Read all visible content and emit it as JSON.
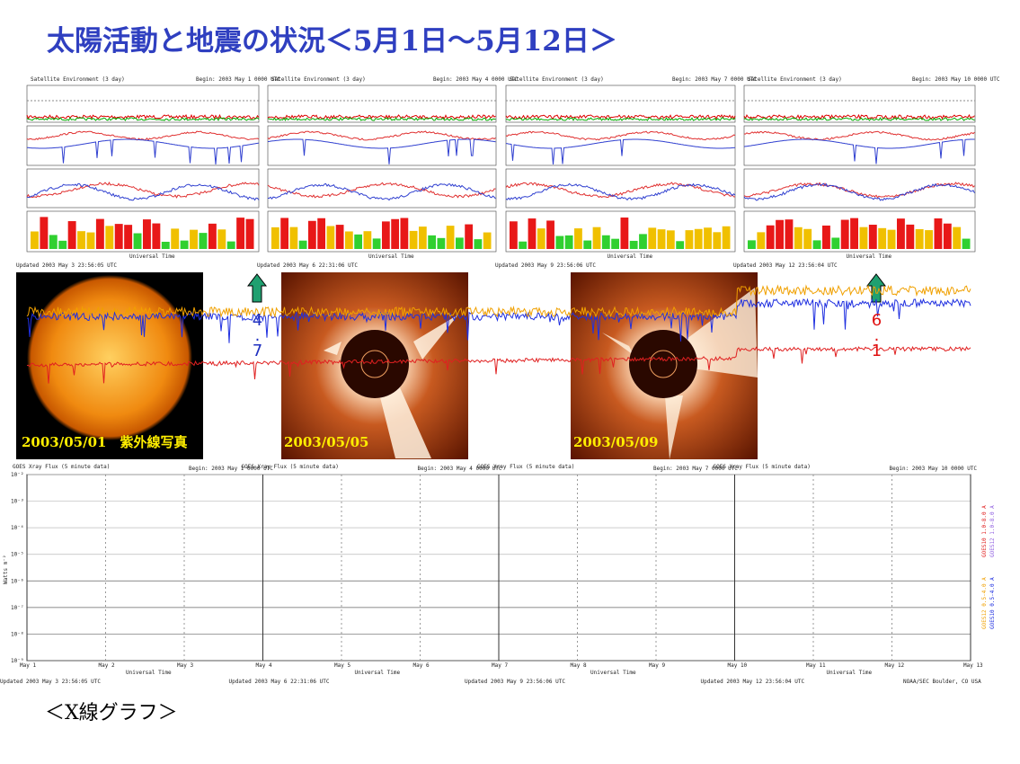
{
  "title": "太陽活動と地震の状況＜5月1日～5月12日＞",
  "satellite_panels": [
    {
      "header": "Satellite Environment (3 day)",
      "begin": "Begin: 2003 May 1 0000 UTC",
      "axis_label": "Universal Time",
      "footer": "Updated 2003 May 3 23:56:05 UTC"
    },
    {
      "header": "Satellite Environment (3 day)",
      "begin": "Begin: 2003 May 4 0000 UTC",
      "axis_label": "Universal Time",
      "footer": "Updated 2003 May 6 22:31:06 UTC"
    },
    {
      "header": "Satellite Environment (3 day)",
      "begin": "Begin: 2003 May 7 0000 UTC",
      "axis_label": "Universal Time",
      "footer": "Updated 2003 May 9 23:56:06 UTC"
    },
    {
      "header": "Satellite Environment (3 day)",
      "begin": "Begin: 2003 May 10 0000 UTC",
      "axis_label": "Universal Time",
      "footer": "Updated 2003 May 12 23:56:04 UTC"
    }
  ],
  "images": [
    {
      "caption": "2003/05/01　紫外線写真"
    },
    {
      "caption": "2003/05/05"
    },
    {
      "caption": "2003/05/09"
    }
  ],
  "earthquakes": [
    {
      "magnitude": "4.7"
    },
    {
      "magnitude": "6.1"
    }
  ],
  "xray_panels": [
    {
      "header": "GOES Xray Flux (5 minute data)",
      "begin": "Begin: 2003 May 1 0000 UTC",
      "footer": "Updated 2003 May 3 23:56:05 UTC"
    },
    {
      "header": "GOES Xray Flux (5 minute data)",
      "begin": "Begin: 2003 May 4 0000 UTC",
      "footer": "Updated 2003 May 6 22:31:06 UTC"
    },
    {
      "header": "GOES Xray Flux (5 minute data)",
      "begin": "Begin: 2003 May 7 0000 UTC",
      "footer": "Updated 2003 May 9 23:56:06 UTC"
    },
    {
      "header": "GOES Xray Flux (5 minute data)",
      "begin": "Begin: 2003 May 10 0000 UTC",
      "footer": "Updated 2003 May 12 23:56:04 UTC"
    }
  ],
  "xray_x_labels": [
    "May 1",
    "May 2",
    "May 3",
    "May 4",
    "May 5",
    "May 6",
    "May 7",
    "May 8",
    "May 9",
    "May 10",
    "May 11",
    "May 12",
    "May 13"
  ],
  "xray_y_ticks": [
    "10⁻²",
    "10⁻³",
    "10⁻⁴",
    "10⁻⁵",
    "10⁻⁶",
    "10⁻⁷",
    "10⁻⁸",
    "10⁻⁹"
  ],
  "xray_axis_label": "Universal Time",
  "xray_y_label": "Watts m⁻²",
  "xray_legend": [
    "GOES10 1.0-8.0 A",
    "GOES12 1.0-8.0 A",
    "GOES12 0.5-4.0 A",
    "GOES10 0.5-4.0 A"
  ],
  "xray_credit": "NOAA/SEC Boulder, CO USA",
  "caption": "＜X線グラフ＞"
}
